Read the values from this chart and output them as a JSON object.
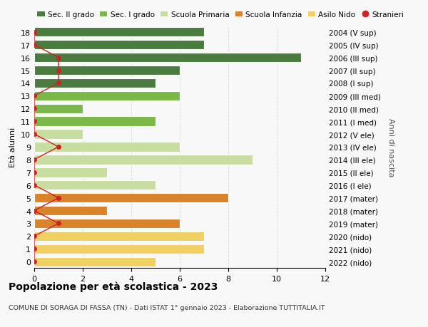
{
  "ages": [
    18,
    17,
    16,
    15,
    14,
    13,
    12,
    11,
    10,
    9,
    8,
    7,
    6,
    5,
    4,
    3,
    2,
    1,
    0
  ],
  "right_labels": [
    "2004 (V sup)",
    "2005 (IV sup)",
    "2006 (III sup)",
    "2007 (II sup)",
    "2008 (I sup)",
    "2009 (III med)",
    "2010 (II med)",
    "2011 (I med)",
    "2012 (V ele)",
    "2013 (IV ele)",
    "2014 (III ele)",
    "2015 (II ele)",
    "2016 (I ele)",
    "2017 (mater)",
    "2018 (mater)",
    "2019 (mater)",
    "2020 (nido)",
    "2021 (nido)",
    "2022 (nido)"
  ],
  "bar_values": [
    7,
    7,
    11,
    6,
    5,
    6,
    2,
    5,
    2,
    6,
    9,
    3,
    5,
    8,
    3,
    6,
    7,
    7,
    5
  ],
  "bar_colors": [
    "#4a7c3f",
    "#4a7c3f",
    "#4a7c3f",
    "#4a7c3f",
    "#4a7c3f",
    "#7ab84a",
    "#7ab84a",
    "#7ab84a",
    "#c8dea0",
    "#c8dea0",
    "#c8dea0",
    "#c8dea0",
    "#c8dea0",
    "#d9832a",
    "#d9832a",
    "#d9832a",
    "#f0d060",
    "#f0d060",
    "#f0d060"
  ],
  "stranieri_values": [
    0,
    0,
    1,
    1,
    1,
    0,
    0,
    0,
    0,
    1,
    0,
    0,
    0,
    1,
    0,
    1,
    0,
    0,
    0
  ],
  "legend_labels": [
    "Sec. II grado",
    "Sec. I grado",
    "Scuola Primaria",
    "Scuola Infanzia",
    "Asilo Nido",
    "Stranieri"
  ],
  "legend_colors": [
    "#4a7c3f",
    "#7ab84a",
    "#c8dea0",
    "#d9832a",
    "#f0d060",
    "#cc2222"
  ],
  "title": "Popolazione per età scolastica - 2023",
  "subtitle": "COMUNE DI SORAGA DI FASSA (TN) - Dati ISTAT 1° gennaio 2023 - Elaborazione TUTTITALIA.IT",
  "right_ylabel": "Anni di nascita",
  "left_ylabel": "Età alunni",
  "xlim": [
    0,
    12
  ],
  "xticks": [
    0,
    2,
    4,
    6,
    8,
    10,
    12
  ],
  "bg_color": "#f8f8f8"
}
